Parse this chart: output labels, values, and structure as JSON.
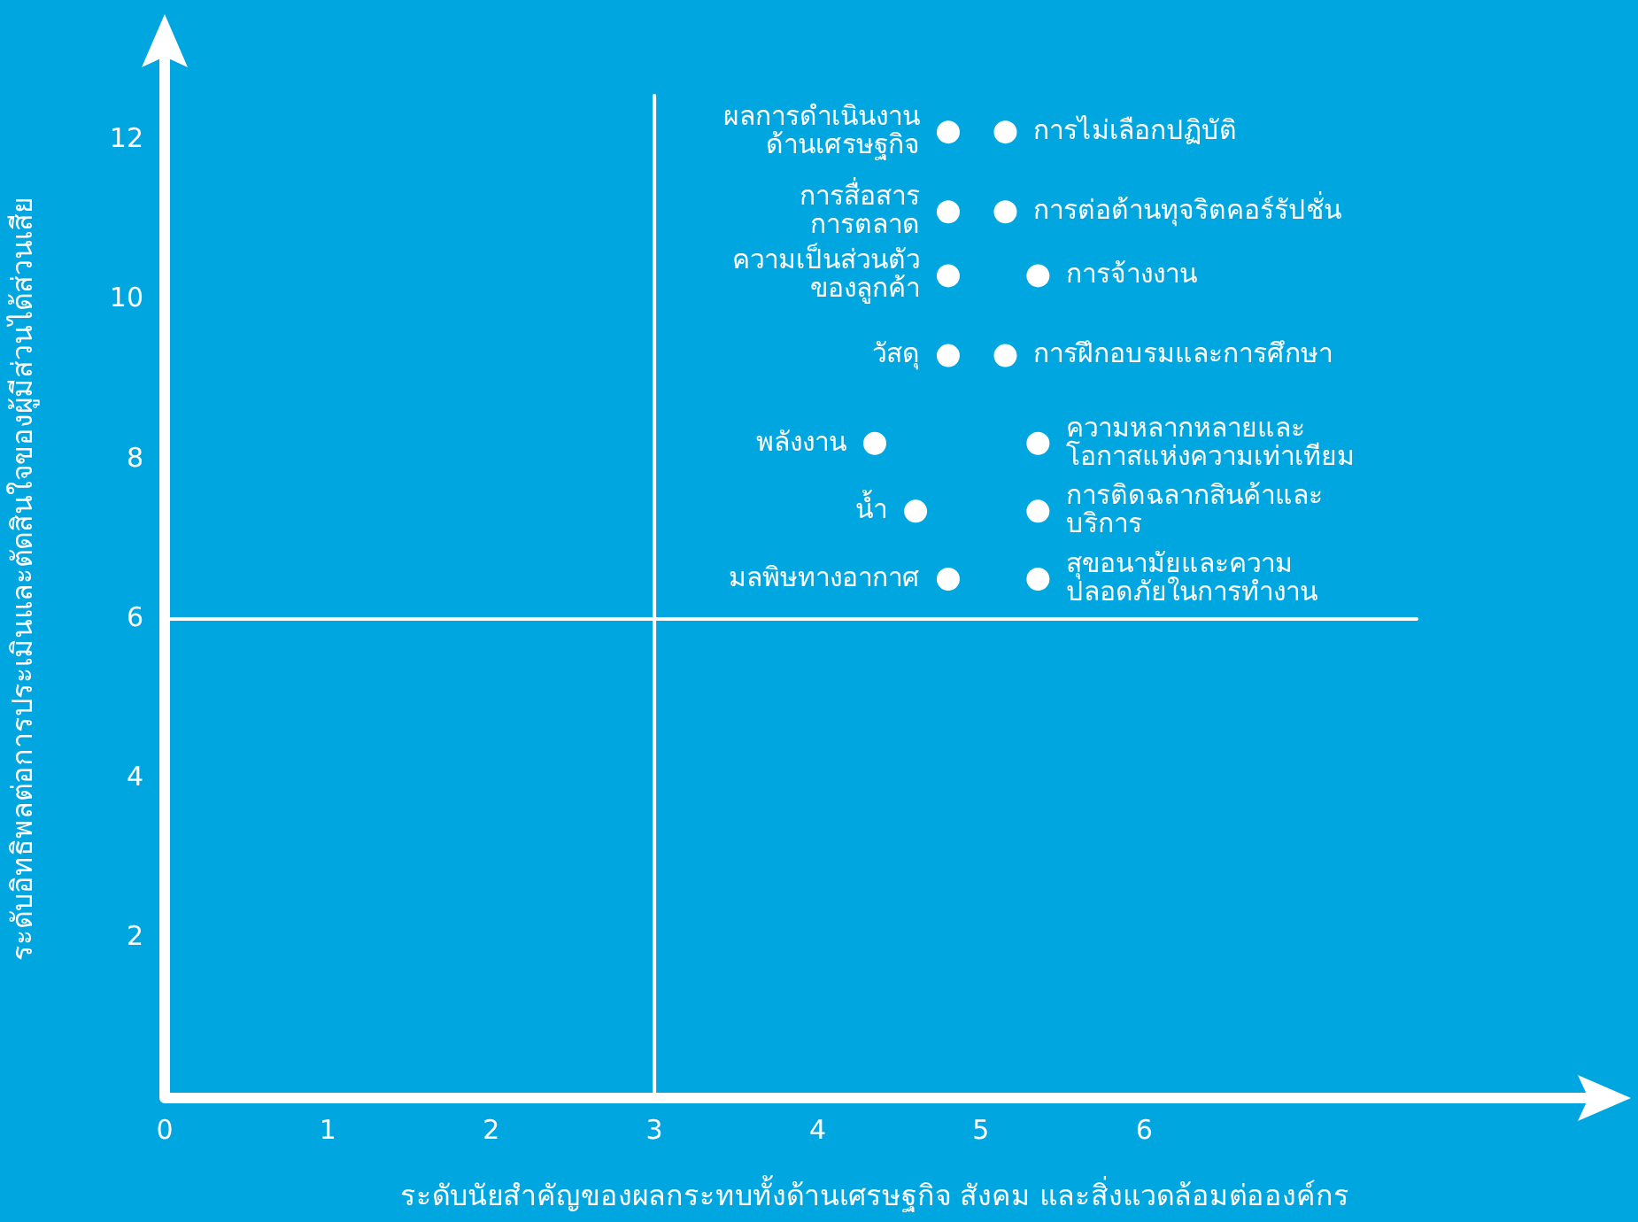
{
  "chart_data": {
    "type": "scatter",
    "xlabel": "ระดับนัยสำคัญของผลกระทบทั้งด้านเศรษฐกิจ สังคม และสิ่งแวดล้อมต่อองค์กร",
    "ylabel": "ระดับอิทธิพลต่อการประเมินและตัดสินใจของผู้มีส่วนได้ส่วนเสีย",
    "xlim": [
      0,
      8.7
    ],
    "ylim": [
      0,
      13
    ],
    "xticks": [
      0,
      1,
      2,
      3,
      4,
      5,
      6
    ],
    "yticks": [
      2,
      4,
      6,
      8,
      10,
      12
    ],
    "grid": false,
    "legend": false,
    "marker": "circle",
    "ref_lines": [
      {
        "axis": "x",
        "value": 3,
        "color": "#ffffff"
      },
      {
        "axis": "y",
        "value": 6,
        "color": "#ffffff"
      }
    ],
    "series": [
      {
        "name": "ผลการดำเนินงาน\nด้านเศรษฐกิจ",
        "color": "#ffffff",
        "x": [
          4.8
        ],
        "values": [
          12.1
        ]
      },
      {
        "name": "การไม่เลือกปฏิบัติ",
        "color": "#ffffff",
        "x": [
          5.15
        ],
        "values": [
          12.1
        ]
      },
      {
        "name": "การสื่อสาร\nการตลาด",
        "color": "#ffffff",
        "x": [
          4.8
        ],
        "values": [
          11.1
        ]
      },
      {
        "name": "การต่อต้านทุจริตคอร์รัปชั่น",
        "color": "#ffffff",
        "x": [
          5.15
        ],
        "values": [
          11.1
        ]
      },
      {
        "name": "ความเป็นส่วนตัว\nของลูกค้า",
        "color": "#ffffff",
        "x": [
          4.8
        ],
        "values": [
          10.3
        ]
      },
      {
        "name": "การจ้างงาน",
        "color": "#ffffff",
        "x": [
          5.35
        ],
        "values": [
          10.3
        ]
      },
      {
        "name": "วัสดุ",
        "color": "#ffffff",
        "x": [
          4.8
        ],
        "values": [
          9.3
        ]
      },
      {
        "name": "การฝึกอบรมและการศึกษา",
        "color": "#ffffff",
        "x": [
          5.15
        ],
        "values": [
          9.3
        ]
      },
      {
        "name": "พลังงาน",
        "color": "#ffffff",
        "x": [
          4.35
        ],
        "values": [
          8.2
        ]
      },
      {
        "name": "ความหลากหลายและ\nโอกาสแห่งความเท่าเทียม",
        "color": "#ffffff",
        "x": [
          5.35
        ],
        "values": [
          8.2
        ]
      },
      {
        "name": "น้ำ",
        "color": "#ffffff",
        "x": [
          4.6
        ],
        "values": [
          7.35
        ]
      },
      {
        "name": "การติดฉลากสินค้าและ\nบริการ",
        "color": "#ffffff",
        "x": [
          5.35
        ],
        "values": [
          7.35
        ]
      },
      {
        "name": "มลพิษทางอากาศ",
        "color": "#ffffff",
        "x": [
          4.8
        ],
        "values": [
          6.5
        ]
      },
      {
        "name": "สุขอนามัยและความ\nปลอดภัยในการทำงาน",
        "color": "#ffffff",
        "x": [
          5.35
        ],
        "values": [
          6.5
        ]
      }
    ]
  }
}
